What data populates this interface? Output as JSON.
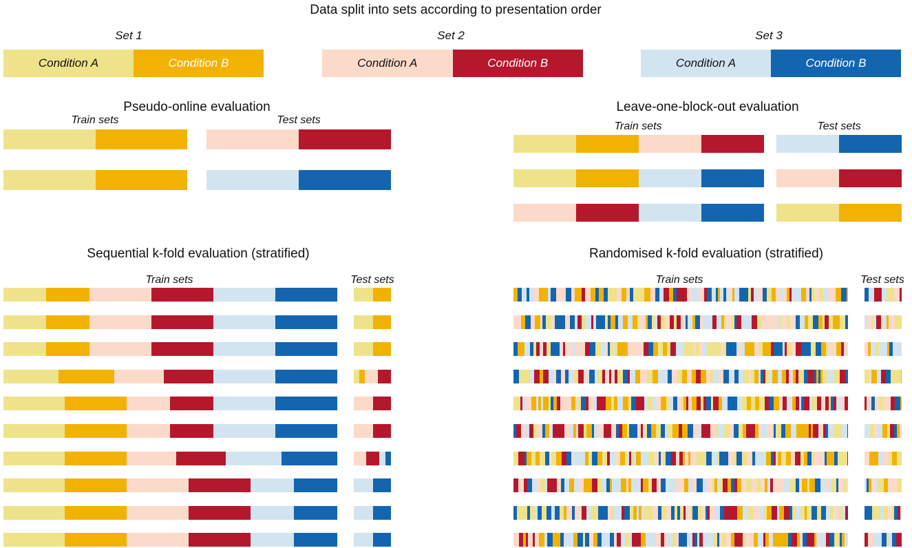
{
  "colors": {
    "a1": "#EEE38A",
    "b1": "#F2B202",
    "a2": "#FCDACA",
    "b2": "#B5172D",
    "a3": "#D2E4F0",
    "b3": "#1365B0"
  },
  "header": {
    "title": "Data split into sets according to presentation order",
    "sets": [
      {
        "label": "Set 1",
        "condition_a": "Condition A",
        "condition_b": "Condition B"
      },
      {
        "label": "Set 2",
        "condition_a": "Condition A",
        "condition_b": "Condition B"
      },
      {
        "label": "Set 3",
        "condition_a": "Condition A",
        "condition_b": "Condition B"
      }
    ]
  },
  "pseudo_online": {
    "title": "Pseudo-online evaluation",
    "train_label": "Train sets",
    "test_label": "Test sets",
    "rows": [
      {
        "train": [
          {
            "c": "a1",
            "w": 1
          },
          {
            "c": "b1",
            "w": 1
          }
        ],
        "test": [
          {
            "c": "a2",
            "w": 1
          },
          {
            "c": "b2",
            "w": 1
          }
        ]
      },
      {
        "train": [
          {
            "c": "a1",
            "w": 1
          },
          {
            "c": "b1",
            "w": 1
          }
        ],
        "test": [
          {
            "c": "a3",
            "w": 1
          },
          {
            "c": "b3",
            "w": 1
          }
        ]
      }
    ]
  },
  "leave_one_block_out": {
    "title": "Leave-one-block-out evaluation",
    "train_label": "Train sets",
    "test_label": "Test sets",
    "rows": [
      {
        "train": [
          {
            "c": "a1",
            "w": 1
          },
          {
            "c": "b1",
            "w": 1
          },
          {
            "c": "a2",
            "w": 1
          },
          {
            "c": "b2",
            "w": 1
          }
        ],
        "test": [
          {
            "c": "a3",
            "w": 1
          },
          {
            "c": "b3",
            "w": 1
          }
        ]
      },
      {
        "train": [
          {
            "c": "a1",
            "w": 1
          },
          {
            "c": "b1",
            "w": 1
          },
          {
            "c": "a3",
            "w": 1
          },
          {
            "c": "b3",
            "w": 1
          }
        ],
        "test": [
          {
            "c": "a2",
            "w": 1
          },
          {
            "c": "b2",
            "w": 1
          }
        ]
      },
      {
        "train": [
          {
            "c": "a2",
            "w": 1
          },
          {
            "c": "b2",
            "w": 1
          },
          {
            "c": "a3",
            "w": 1
          },
          {
            "c": "b3",
            "w": 1
          }
        ],
        "test": [
          {
            "c": "a1",
            "w": 1
          },
          {
            "c": "b1",
            "w": 1
          }
        ]
      }
    ]
  },
  "sequential_kfold": {
    "title": "Sequential k-fold evaluation (stratified)",
    "train_label": "Train sets",
    "test_label": "Test sets",
    "rows": [
      {
        "train": [
          {
            "c": "a1",
            "w": 62
          },
          {
            "c": "b1",
            "w": 63
          },
          {
            "c": "a2",
            "w": 90
          },
          {
            "c": "b2",
            "w": 90
          },
          {
            "c": "a3",
            "w": 90
          },
          {
            "c": "b3",
            "w": 90
          }
        ],
        "test": [
          {
            "c": "a1",
            "w": 27
          },
          {
            "c": "b1",
            "w": 26
          }
        ]
      },
      {
        "train": [
          {
            "c": "a1",
            "w": 62
          },
          {
            "c": "b1",
            "w": 63
          },
          {
            "c": "a2",
            "w": 90
          },
          {
            "c": "b2",
            "w": 90
          },
          {
            "c": "a3",
            "w": 90
          },
          {
            "c": "b3",
            "w": 90
          }
        ],
        "test": [
          {
            "c": "a1",
            "w": 27
          },
          {
            "c": "b1",
            "w": 26
          }
        ]
      },
      {
        "train": [
          {
            "c": "a1",
            "w": 62
          },
          {
            "c": "b1",
            "w": 63
          },
          {
            "c": "a2",
            "w": 90
          },
          {
            "c": "b2",
            "w": 90
          },
          {
            "c": "a3",
            "w": 90
          },
          {
            "c": "b3",
            "w": 90
          }
        ],
        "test": [
          {
            "c": "a1",
            "w": 27
          },
          {
            "c": "b1",
            "w": 26
          }
        ]
      },
      {
        "train": [
          {
            "c": "a1",
            "w": 80
          },
          {
            "c": "b1",
            "w": 81
          },
          {
            "c": "a2",
            "w": 72
          },
          {
            "c": "b2",
            "w": 72
          },
          {
            "c": "a3",
            "w": 90
          },
          {
            "c": "b3",
            "w": 90
          }
        ],
        "test": [
          {
            "c": "a1",
            "w": 8
          },
          {
            "c": "b1",
            "w": 8
          },
          {
            "c": "a2",
            "w": 18
          },
          {
            "c": "b2",
            "w": 19
          }
        ]
      },
      {
        "train": [
          {
            "c": "a1",
            "w": 89
          },
          {
            "c": "b1",
            "w": 90
          },
          {
            "c": "a2",
            "w": 63
          },
          {
            "c": "b2",
            "w": 63
          },
          {
            "c": "a3",
            "w": 90
          },
          {
            "c": "b3",
            "w": 90
          }
        ],
        "test": [
          {
            "c": "a2",
            "w": 27
          },
          {
            "c": "b2",
            "w": 26
          }
        ]
      },
      {
        "train": [
          {
            "c": "a1",
            "w": 89
          },
          {
            "c": "b1",
            "w": 90
          },
          {
            "c": "a2",
            "w": 63
          },
          {
            "c": "b2",
            "w": 63
          },
          {
            "c": "a3",
            "w": 90
          },
          {
            "c": "b3",
            "w": 90
          }
        ],
        "test": [
          {
            "c": "a2",
            "w": 27
          },
          {
            "c": "b2",
            "w": 26
          }
        ]
      },
      {
        "train": [
          {
            "c": "a1",
            "w": 89
          },
          {
            "c": "b1",
            "w": 90
          },
          {
            "c": "a2",
            "w": 72
          },
          {
            "c": "b2",
            "w": 72
          },
          {
            "c": "a3",
            "w": 81
          },
          {
            "c": "b3",
            "w": 81
          }
        ],
        "test": [
          {
            "c": "a2",
            "w": 18
          },
          {
            "c": "b2",
            "w": 18
          },
          {
            "c": "a3",
            "w": 9
          },
          {
            "c": "b3",
            "w": 8
          }
        ]
      },
      {
        "train": [
          {
            "c": "a1",
            "w": 89
          },
          {
            "c": "b1",
            "w": 90
          },
          {
            "c": "a2",
            "w": 90
          },
          {
            "c": "b2",
            "w": 90
          },
          {
            "c": "a3",
            "w": 63
          },
          {
            "c": "b3",
            "w": 63
          }
        ],
        "test": [
          {
            "c": "a3",
            "w": 27
          },
          {
            "c": "b3",
            "w": 26
          }
        ]
      },
      {
        "train": [
          {
            "c": "a1",
            "w": 89
          },
          {
            "c": "b1",
            "w": 90
          },
          {
            "c": "a2",
            "w": 90
          },
          {
            "c": "b2",
            "w": 90
          },
          {
            "c": "a3",
            "w": 63
          },
          {
            "c": "b3",
            "w": 63
          }
        ],
        "test": [
          {
            "c": "a3",
            "w": 27
          },
          {
            "c": "b3",
            "w": 26
          }
        ]
      },
      {
        "train": [
          {
            "c": "a1",
            "w": 89
          },
          {
            "c": "b1",
            "w": 90
          },
          {
            "c": "a2",
            "w": 90
          },
          {
            "c": "b2",
            "w": 90
          },
          {
            "c": "a3",
            "w": 63
          },
          {
            "c": "b3",
            "w": 63
          }
        ],
        "test": [
          {
            "c": "a3",
            "w": 27
          },
          {
            "c": "b3",
            "w": 26
          }
        ]
      }
    ]
  },
  "randomised_kfold": {
    "title": "Randomised k-fold evaluation (stratified)",
    "train_label": "Train sets",
    "test_label": "Test sets",
    "fold_count": 10
  }
}
